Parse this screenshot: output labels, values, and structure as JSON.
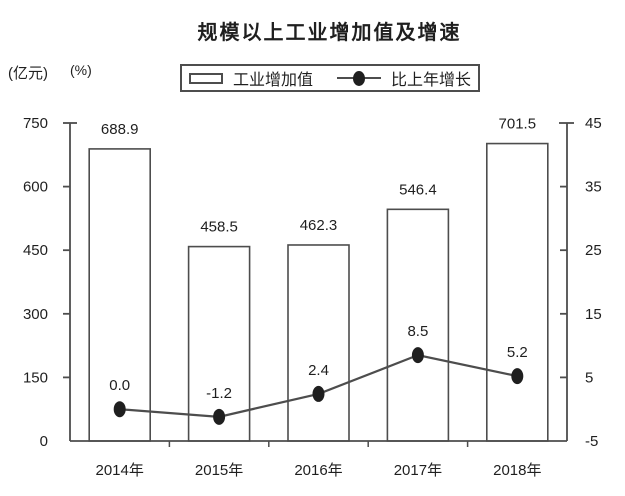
{
  "title": "规模以上工业增加值及增速",
  "units": {
    "left": "(亿元)",
    "right": "(%)"
  },
  "legend": {
    "bar_label": "工业增加值",
    "line_label": "比上年增长"
  },
  "colors": {
    "stroke": "#4d4d4d",
    "text": "#1f1f1f",
    "marker": "#1f1f1f",
    "bar_fill": "#ffffff",
    "background": "#ffffff"
  },
  "chart_data": {
    "type": "bar+line",
    "title": "规模以上工业增加值及增速",
    "categories": [
      "2014年",
      "2015年",
      "2016年",
      "2017年",
      "2018年"
    ],
    "series": [
      {
        "name": "工业增加值",
        "chart_type": "bar",
        "axis": "left",
        "unit": "亿元",
        "values": [
          688.9,
          458.5,
          462.3,
          546.4,
          701.5
        ],
        "labels": [
          "688.9",
          "458.5",
          "462.3",
          "546.4",
          "701.5"
        ]
      },
      {
        "name": "比上年增长",
        "chart_type": "line",
        "axis": "right",
        "unit": "%",
        "values": [
          0.0,
          -1.2,
          2.4,
          8.5,
          5.2
        ],
        "labels": [
          "0.0",
          "-1.2",
          "2.4",
          "8.5",
          "5.2"
        ]
      }
    ],
    "left_axis": {
      "range": [
        0,
        750
      ],
      "ticks": [
        0,
        150,
        300,
        450,
        600,
        750
      ]
    },
    "right_axis": {
      "range": [
        -5,
        45
      ],
      "ticks": [
        -5,
        5,
        15,
        25,
        35,
        45
      ]
    },
    "grid": false,
    "legend_position": "top"
  }
}
